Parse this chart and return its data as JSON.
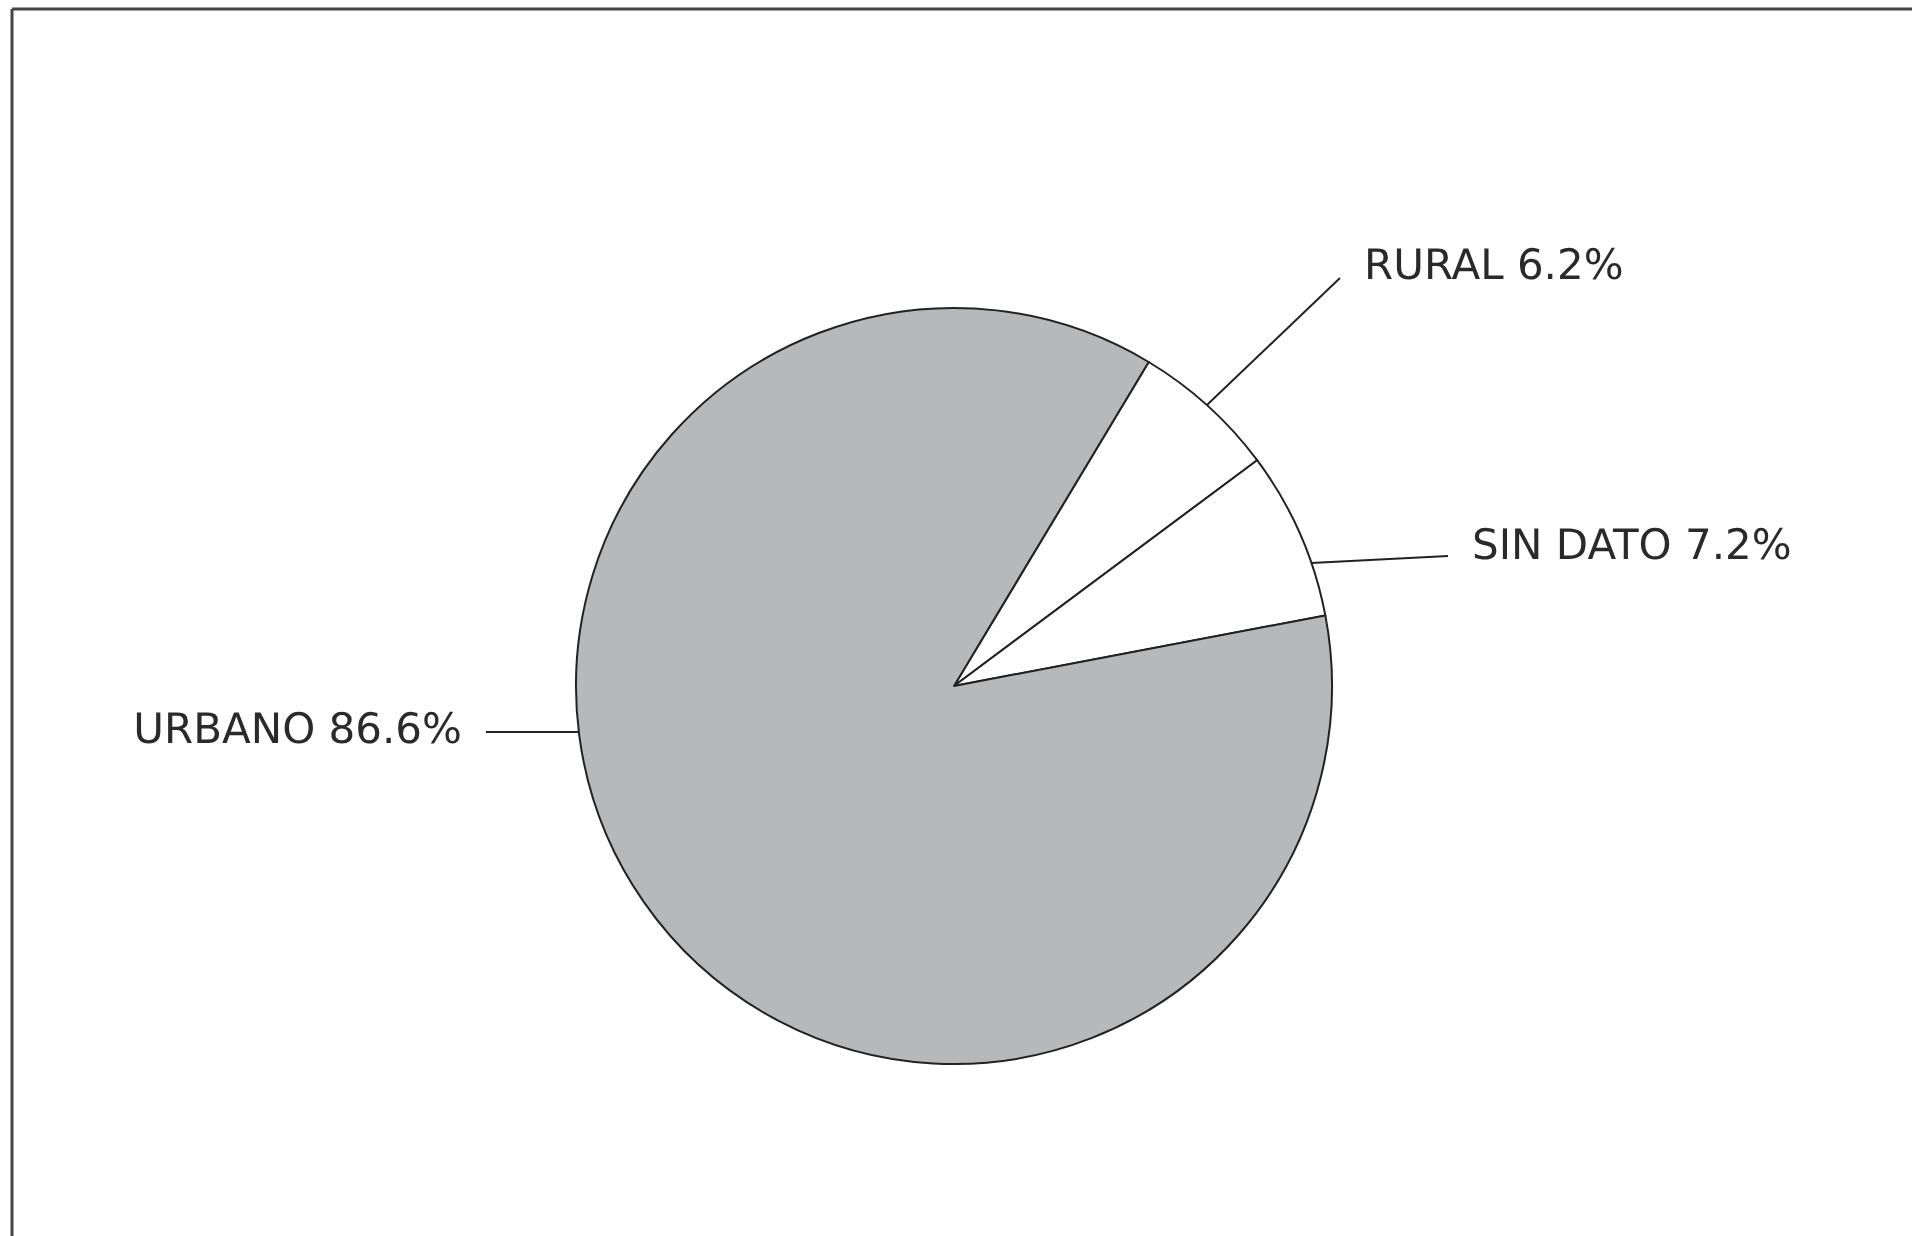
{
  "chart_data": {
    "type": "pie",
    "categories": [
      "RURAL",
      "SIN DATO",
      "URBANO"
    ],
    "values": [
      6.2,
      7.2,
      86.6
    ],
    "colors": [
      "#ffffff",
      "#ffffff",
      "#b6b8ba"
    ],
    "value_labels": [
      "6.2%",
      "7.2%",
      "86.6%"
    ]
  }
}
